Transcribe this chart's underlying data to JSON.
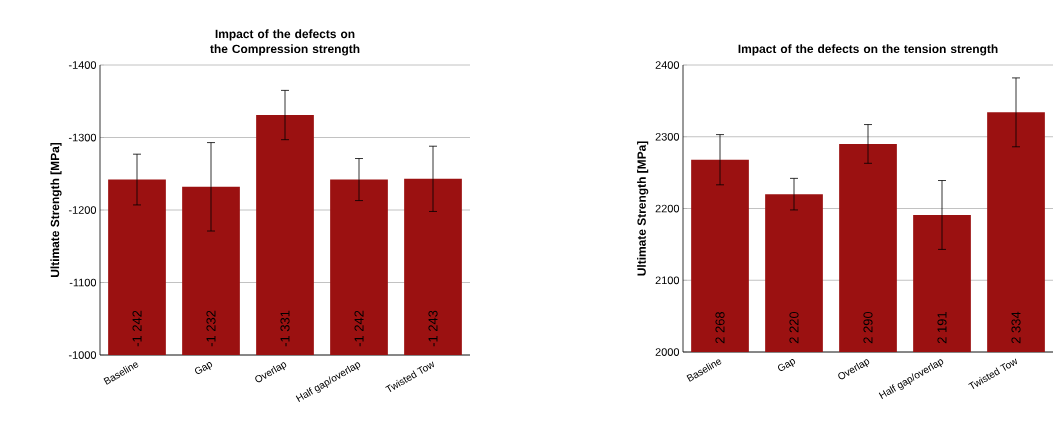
{
  "chart_data": [
    {
      "type": "bar",
      "title": "Impact of the defects on the Compression strength",
      "ylabel": "Ultimate Strength [MPa]",
      "categories": [
        "Baseline",
        "Gap",
        "Overlap",
        "Half gap/overlap",
        "Twisted Tow"
      ],
      "values": [
        -1242,
        -1232,
        -1331,
        -1242,
        -1243
      ],
      "errors": [
        35,
        61,
        34,
        29,
        45
      ],
      "value_labels": [
        "-1 242",
        "-1 232",
        "-1 331",
        "-1 242",
        "-1 243"
      ],
      "color": "#9b1111",
      "ylim": [
        -1000,
        -1400
      ],
      "yticks": [
        -1000,
        -1100,
        -1200,
        -1300,
        -1400
      ],
      "grid": "y"
    },
    {
      "type": "bar",
      "title": "Impact of the defects on the tension strength",
      "ylabel": "Ultimate Strength [MPa]",
      "categories": [
        "Baseline",
        "Gap",
        "Overlap",
        "Half gap/overlap",
        "Twisted Tow"
      ],
      "values": [
        2268,
        2220,
        2290,
        2191,
        2334
      ],
      "errors": [
        35,
        22,
        27,
        48,
        48
      ],
      "value_labels": [
        "2 268",
        "2 220",
        "2 290",
        "2 191",
        "2 334"
      ],
      "color": "#9b1111",
      "ylim": [
        2000,
        2400
      ],
      "yticks": [
        2000,
        2100,
        2200,
        2300,
        2400
      ],
      "grid": "y"
    }
  ]
}
